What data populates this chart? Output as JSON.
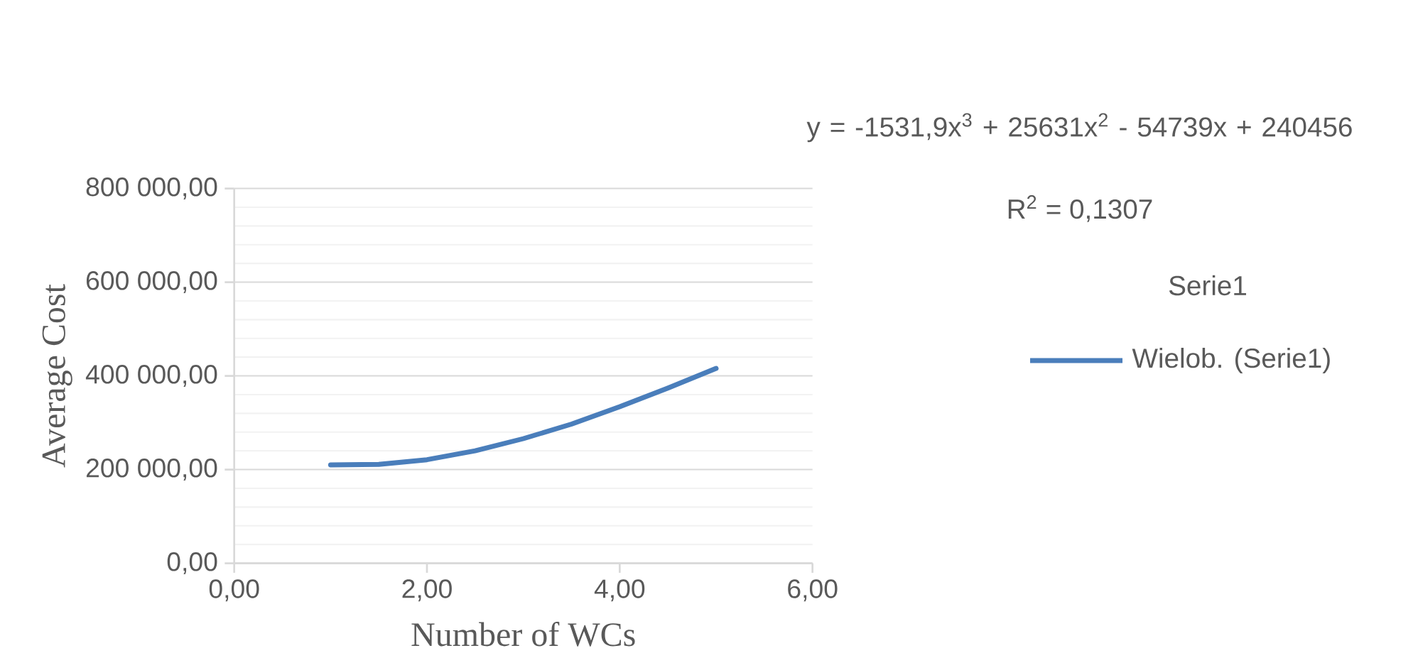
{
  "chart_data": {
    "type": "line",
    "xlabel": "Number of WCs",
    "ylabel": "Average Cost",
    "legend_title": "Serie1",
    "x": [
      1,
      1.5,
      2,
      2.5,
      3,
      3.5,
      4,
      4.5,
      5
    ],
    "series": [
      {
        "name": "Wielob. (Serie1)",
        "color": "#4a7ebb",
        "values": [
          210000,
          211000,
          221000,
          240000,
          266000,
          297000,
          334000,
          374000,
          416000
        ]
      }
    ],
    "xlim": [
      0,
      6
    ],
    "xticks": [
      {
        "value": 0,
        "label": "0,00"
      },
      {
        "value": 2,
        "label": "2,00"
      },
      {
        "value": 4,
        "label": "4,00"
      },
      {
        "value": 6,
        "label": "6,00"
      }
    ],
    "ylim": [
      0,
      800000
    ],
    "yticks": [
      {
        "value": 0,
        "label": "0,00"
      },
      {
        "value": 200000,
        "label": "200 000,00"
      },
      {
        "value": 400000,
        "label": "400 000,00"
      },
      {
        "value": 600000,
        "label": "600 000,00"
      },
      {
        "value": 800000,
        "label": "800 000,00"
      }
    ],
    "grid": "y",
    "legend": "right",
    "marker": "none",
    "line_style": "solid",
    "annotations": [
      "y = -1531,9x$^{3}$ + 25631x$^{2}$ - 54739x + 240456",
      "R$^{2}$ = 0,1307"
    ]
  }
}
